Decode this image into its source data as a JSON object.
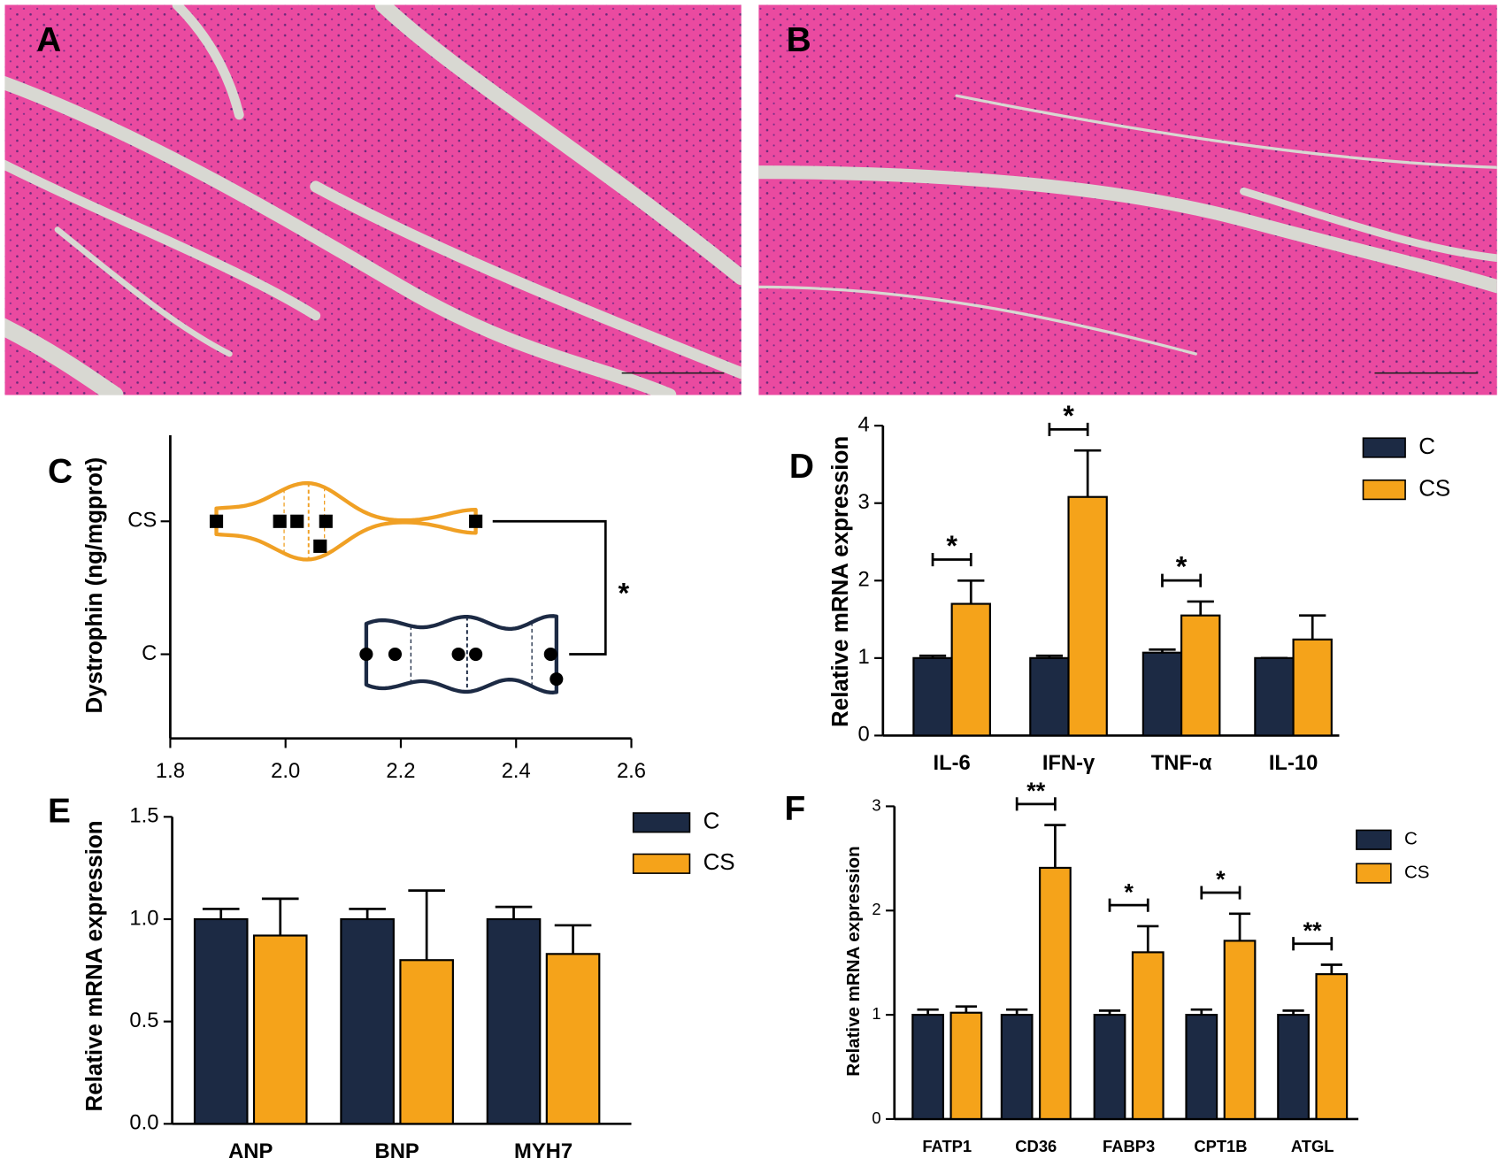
{
  "images": [
    {
      "panel_label": "A"
    },
    {
      "panel_label": "B"
    }
  ],
  "chart_data": [
    {
      "type": "violin",
      "panel_label": "C",
      "y_label": "Dystrophin (ng/mgprot)",
      "categories": [
        "CS",
        "C"
      ],
      "series": [
        {
          "name": "CS",
          "color": "#f0a024",
          "marker": "square",
          "values": [
            1.88,
            1.99,
            2.02,
            2.07,
            2.06,
            2.33
          ]
        },
        {
          "name": "C",
          "color": "#1c2a44",
          "marker": "circle",
          "values": [
            2.14,
            2.19,
            2.3,
            2.33,
            2.46,
            2.47
          ]
        }
      ],
      "xlim": [
        1.8,
        2.6
      ],
      "xticks": [
        1.8,
        {
          "value": 2,
          "label": "2.0"
        },
        2.2,
        2.4,
        2.6
      ],
      "annotation": "*"
    },
    {
      "type": "bar",
      "panel_label": "D",
      "y_label": "Relative mRNA expression",
      "categories": [
        "IL-6",
        "IFN-γ",
        "TNF-α",
        "IL-10"
      ],
      "series": [
        {
          "name": "C",
          "color": "#1c2a44",
          "values": [
            1.0,
            1.0,
            1.07,
            1.0
          ],
          "errors": [
            0.03,
            0.03,
            0.04,
            0
          ]
        },
        {
          "name": "CS",
          "color": "#f5a31a",
          "values": [
            1.7,
            3.08,
            1.55,
            1.24
          ],
          "errors": [
            0.3,
            0.6,
            0.18,
            0.31
          ]
        }
      ],
      "ylim": [
        0,
        4
      ],
      "yticks": [
        0,
        1,
        2,
        3,
        4
      ],
      "significance": [
        "*",
        "*",
        "*",
        null
      ]
    },
    {
      "type": "bar",
      "panel_label": "E",
      "y_label": "Relative mRNA expression",
      "categories": [
        "ANP",
        "BNP",
        "MYH7"
      ],
      "series": [
        {
          "name": "C",
          "color": "#1c2a44",
          "values": [
            1.0,
            1.0,
            1.0
          ],
          "errors": [
            0.05,
            0.05,
            0.06
          ]
        },
        {
          "name": "CS",
          "color": "#f5a31a",
          "values": [
            0.92,
            0.8,
            0.83
          ],
          "errors": [
            0.18,
            0.34,
            0.14
          ]
        }
      ],
      "ylim": [
        0,
        1.5
      ],
      "yticks": [
        {
          "value": 0,
          "label": "0.0"
        },
        0.5,
        {
          "value": 1,
          "label": "1.0"
        },
        1.5
      ],
      "significance": [
        null,
        null,
        null
      ]
    },
    {
      "type": "bar",
      "panel_label": "F",
      "y_label": "Relative mRNA expression",
      "categories": [
        "FATP1",
        "CD36",
        "FABP3",
        "CPT1B",
        "ATGL"
      ],
      "series": [
        {
          "name": "C",
          "color": "#1c2a44",
          "values": [
            1.0,
            1.0,
            1.0,
            1.0,
            1.0
          ],
          "errors": [
            0.05,
            0.05,
            0.04,
            0.05,
            0.04
          ]
        },
        {
          "name": "CS",
          "color": "#f5a31a",
          "values": [
            1.02,
            2.41,
            1.6,
            1.71,
            1.39
          ],
          "errors": [
            0.06,
            0.41,
            0.25,
            0.26,
            0.09
          ]
        }
      ],
      "ylim": [
        0,
        3
      ],
      "yticks": [
        0,
        1,
        2,
        3
      ],
      "significance": [
        null,
        "**",
        "*",
        "*",
        "**"
      ]
    }
  ]
}
